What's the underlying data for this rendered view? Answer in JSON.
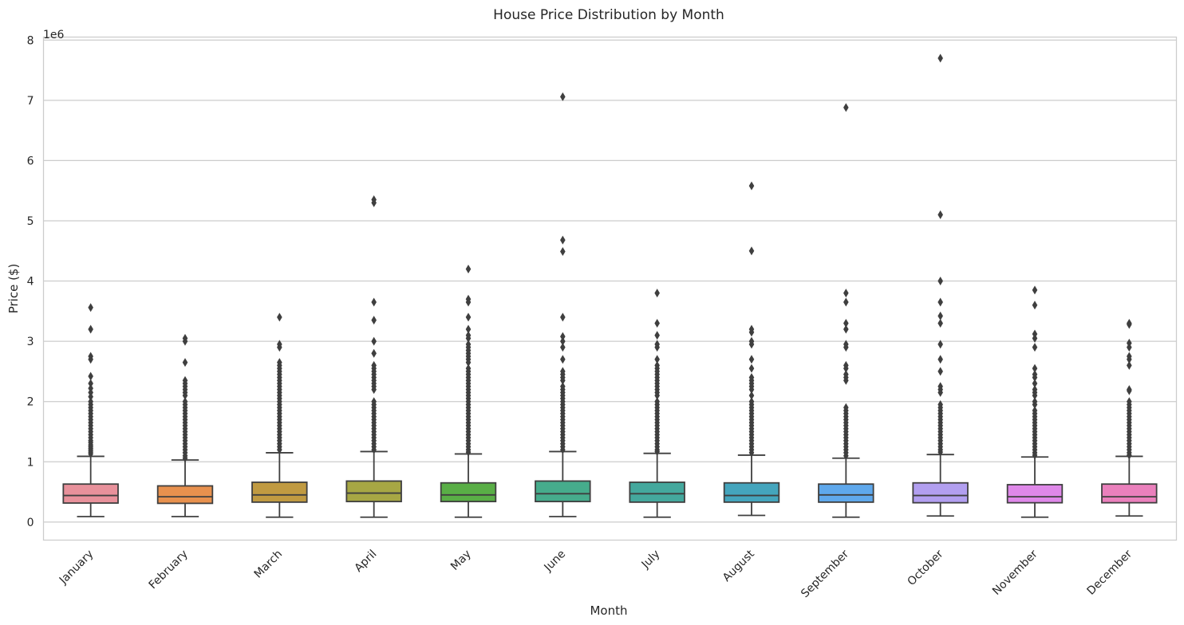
{
  "chart_data": {
    "type": "box",
    "title": "House Price Distribution by Month",
    "xlabel": "Month",
    "ylabel": "Price ($)",
    "y_offset_label": "1e6",
    "y_scale_factor": 1000000,
    "ylim": [
      -300000,
      8050000
    ],
    "yticks": [
      0,
      1000000,
      2000000,
      3000000,
      4000000,
      5000000,
      6000000,
      7000000,
      8000000
    ],
    "ytick_labels": [
      "0",
      "1",
      "2",
      "3",
      "4",
      "5",
      "6",
      "7",
      "8"
    ],
    "grid": true,
    "categories": [
      "January",
      "February",
      "March",
      "April",
      "May",
      "June",
      "July",
      "August",
      "September",
      "October",
      "November",
      "December"
    ],
    "colors": [
      "#e8919b",
      "#e8914e",
      "#c09a41",
      "#a7a744",
      "#59ae46",
      "#46ac8c",
      "#44a89d",
      "#44a5bd",
      "#5fa8ec",
      "#b29ff0",
      "#df88e9",
      "#ea80bc"
    ],
    "boxes": [
      {
        "whislo": 90000,
        "q1": 315000,
        "med": 440000,
        "q3": 630000,
        "whishi": 1090000,
        "fliers": [
          3560000,
          3200000,
          2750000,
          2700000,
          2420000,
          2300000,
          2220000,
          2150000,
          2080000,
          2000000,
          1950000,
          1900000,
          1850000,
          1800000,
          1750000,
          1700000,
          1650000,
          1600000,
          1550000,
          1500000,
          1450000,
          1400000,
          1350000,
          1320000,
          1280000,
          1250000,
          1220000,
          1190000,
          1160000,
          1130000
        ]
      },
      {
        "whislo": 90000,
        "q1": 310000,
        "med": 420000,
        "q3": 600000,
        "whishi": 1030000,
        "fliers": [
          3050000,
          3000000,
          2650000,
          2350000,
          2300000,
          2250000,
          2200000,
          2150000,
          2100000,
          2000000,
          1950000,
          1900000,
          1850000,
          1800000,
          1750000,
          1700000,
          1650000,
          1600000,
          1550000,
          1500000,
          1450000,
          1400000,
          1350000,
          1300000,
          1250000,
          1200000,
          1150000,
          1100000,
          1060000
        ]
      },
      {
        "whislo": 80000,
        "q1": 330000,
        "med": 450000,
        "q3": 660000,
        "whishi": 1150000,
        "fliers": [
          3400000,
          2950000,
          2900000,
          2650000,
          2600000,
          2550000,
          2500000,
          2450000,
          2400000,
          2350000,
          2300000,
          2250000,
          2200000,
          2150000,
          2100000,
          2050000,
          2000000,
          1950000,
          1900000,
          1850000,
          1800000,
          1750000,
          1700000,
          1650000,
          1600000,
          1550000,
          1500000,
          1450000,
          1400000,
          1350000,
          1300000,
          1250000,
          1200000
        ]
      },
      {
        "whislo": 80000,
        "q1": 340000,
        "med": 480000,
        "q3": 680000,
        "whishi": 1170000,
        "fliers": [
          5350000,
          5300000,
          3650000,
          3350000,
          3000000,
          2800000,
          2600000,
          2550000,
          2500000,
          2450000,
          2400000,
          2350000,
          2300000,
          2250000,
          2200000,
          2000000,
          1950000,
          1900000,
          1850000,
          1800000,
          1750000,
          1700000,
          1650000,
          1600000,
          1550000,
          1500000,
          1450000,
          1400000,
          1350000,
          1300000,
          1250000,
          1200000
        ]
      },
      {
        "whislo": 80000,
        "q1": 340000,
        "med": 450000,
        "q3": 650000,
        "whishi": 1130000,
        "fliers": [
          4200000,
          3700000,
          3650000,
          3400000,
          3200000,
          3100000,
          3050000,
          2950000,
          2900000,
          2850000,
          2800000,
          2750000,
          2700000,
          2650000,
          2550000,
          2500000,
          2450000,
          2400000,
          2350000,
          2300000,
          2250000,
          2200000,
          2150000,
          2100000,
          2050000,
          2000000,
          1950000,
          1900000,
          1850000,
          1800000,
          1750000,
          1700000,
          1650000,
          1600000,
          1550000,
          1500000,
          1450000,
          1400000,
          1350000,
          1300000,
          1250000,
          1200000,
          1160000
        ]
      },
      {
        "whislo": 90000,
        "q1": 340000,
        "med": 470000,
        "q3": 680000,
        "whishi": 1170000,
        "fliers": [
          7060000,
          4680000,
          4490000,
          3400000,
          3080000,
          3000000,
          2900000,
          2700000,
          2500000,
          2450000,
          2400000,
          2350000,
          2250000,
          2200000,
          2150000,
          2100000,
          2050000,
          2000000,
          1950000,
          1900000,
          1850000,
          1800000,
          1750000,
          1700000,
          1650000,
          1600000,
          1550000,
          1500000,
          1450000,
          1400000,
          1350000,
          1300000,
          1250000,
          1200000
        ]
      },
      {
        "whislo": 80000,
        "q1": 330000,
        "med": 470000,
        "q3": 660000,
        "whishi": 1140000,
        "fliers": [
          3800000,
          3300000,
          3100000,
          2950000,
          2900000,
          2700000,
          2600000,
          2550000,
          2500000,
          2450000,
          2400000,
          2350000,
          2300000,
          2250000,
          2200000,
          2150000,
          2100000,
          2000000,
          1950000,
          1900000,
          1850000,
          1800000,
          1750000,
          1700000,
          1650000,
          1600000,
          1550000,
          1500000,
          1450000,
          1400000,
          1350000,
          1300000,
          1250000,
          1200000,
          1170000
        ]
      },
      {
        "whislo": 110000,
        "q1": 330000,
        "med": 440000,
        "q3": 650000,
        "whishi": 1110000,
        "fliers": [
          5580000,
          4500000,
          3200000,
          3150000,
          3000000,
          2950000,
          2700000,
          2550000,
          2400000,
          2350000,
          2300000,
          2250000,
          2200000,
          2100000,
          2000000,
          1950000,
          1900000,
          1850000,
          1800000,
          1750000,
          1700000,
          1650000,
          1600000,
          1550000,
          1500000,
          1450000,
          1400000,
          1350000,
          1300000,
          1250000,
          1200000,
          1150000
        ]
      },
      {
        "whislo": 80000,
        "q1": 330000,
        "med": 450000,
        "q3": 630000,
        "whishi": 1060000,
        "fliers": [
          6880000,
          3800000,
          3650000,
          3300000,
          3200000,
          2950000,
          2900000,
          2600000,
          2550000,
          2450000,
          2400000,
          2350000,
          1900000,
          1850000,
          1800000,
          1750000,
          1700000,
          1650000,
          1600000,
          1550000,
          1500000,
          1450000,
          1400000,
          1350000,
          1300000,
          1250000,
          1200000,
          1150000,
          1100000
        ]
      },
      {
        "whislo": 100000,
        "q1": 320000,
        "med": 440000,
        "q3": 650000,
        "whishi": 1120000,
        "fliers": [
          7700000,
          5100000,
          4000000,
          3650000,
          3420000,
          3300000,
          2950000,
          2700000,
          2500000,
          2250000,
          2200000,
          2150000,
          1950000,
          1900000,
          1850000,
          1800000,
          1750000,
          1700000,
          1650000,
          1600000,
          1550000,
          1500000,
          1450000,
          1400000,
          1350000,
          1300000,
          1250000,
          1200000,
          1160000
        ]
      },
      {
        "whislo": 80000,
        "q1": 320000,
        "med": 420000,
        "q3": 620000,
        "whishi": 1080000,
        "fliers": [
          3850000,
          3600000,
          3120000,
          3050000,
          2900000,
          2550000,
          2450000,
          2400000,
          2300000,
          2200000,
          2150000,
          2100000,
          2000000,
          1950000,
          1850000,
          1800000,
          1750000,
          1700000,
          1650000,
          1600000,
          1550000,
          1500000,
          1450000,
          1400000,
          1350000,
          1300000,
          1250000,
          1200000,
          1150000,
          1110000
        ]
      },
      {
        "whislo": 100000,
        "q1": 320000,
        "med": 420000,
        "q3": 630000,
        "whishi": 1090000,
        "fliers": [
          3300000,
          3280000,
          2970000,
          2900000,
          2750000,
          2700000,
          2600000,
          2200000,
          2180000,
          2000000,
          1950000,
          1900000,
          1850000,
          1800000,
          1750000,
          1700000,
          1650000,
          1600000,
          1550000,
          1500000,
          1450000,
          1400000,
          1350000,
          1300000,
          1250000,
          1200000,
          1150000,
          1110000
        ]
      }
    ]
  }
}
